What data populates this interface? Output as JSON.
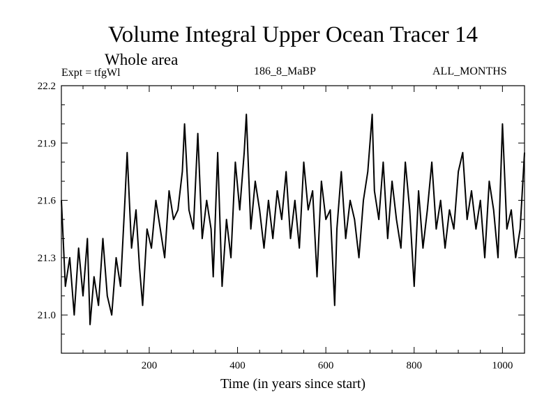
{
  "chart_data": {
    "type": "line",
    "title": "Volume Integral Upper Ocean Tracer 14",
    "subtitle": "Whole area",
    "experiment": "Expt = tfgWl",
    "run_label": "186_8_MaBP",
    "months": "ALL_MONTHS",
    "xlabel": "Time (in years since start)",
    "ylabel": "",
    "xlim": [
      1,
      1050
    ],
    "ylim": [
      20.8,
      22.2
    ],
    "x_ticks": [
      200,
      400,
      600,
      800,
      1000
    ],
    "y_ticks": [
      21.0,
      21.3,
      21.6,
      21.9,
      22.2
    ],
    "x_tick_labels": [
      "200",
      "400",
      "600",
      "800",
      "1000"
    ],
    "y_tick_labels": [
      "21.0",
      "21.3",
      "21.6",
      "21.9",
      "22.2"
    ],
    "series": [
      {
        "name": "tracer14",
        "x": [
          1,
          10,
          20,
          30,
          40,
          50,
          60,
          66,
          75,
          85,
          95,
          105,
          115,
          125,
          135,
          145,
          150,
          160,
          170,
          178,
          185,
          195,
          205,
          215,
          225,
          235,
          245,
          255,
          265,
          275,
          280,
          290,
          300,
          310,
          320,
          330,
          340,
          345,
          355,
          365,
          375,
          385,
          395,
          405,
          415,
          420,
          430,
          440,
          450,
          460,
          470,
          480,
          490,
          500,
          510,
          520,
          530,
          540,
          550,
          560,
          570,
          580,
          590,
          600,
          610,
          620,
          625,
          635,
          645,
          655,
          665,
          675,
          685,
          695,
          705,
          710,
          720,
          730,
          740,
          750,
          760,
          770,
          780,
          790,
          800,
          810,
          820,
          830,
          840,
          850,
          860,
          870,
          880,
          890,
          900,
          910,
          920,
          930,
          940,
          950,
          960,
          970,
          980,
          990,
          1000,
          1010,
          1020,
          1030,
          1040,
          1050
        ],
        "values": [
          21.6,
          21.15,
          21.3,
          21.0,
          21.35,
          21.1,
          21.4,
          20.95,
          21.2,
          21.05,
          21.4,
          21.1,
          21.0,
          21.3,
          21.15,
          21.6,
          21.85,
          21.35,
          21.55,
          21.25,
          21.05,
          21.45,
          21.35,
          21.6,
          21.45,
          21.3,
          21.65,
          21.5,
          21.55,
          21.75,
          22.0,
          21.55,
          21.45,
          21.95,
          21.4,
          21.6,
          21.45,
          21.2,
          21.85,
          21.15,
          21.5,
          21.3,
          21.8,
          21.55,
          21.85,
          22.05,
          21.45,
          21.7,
          21.55,
          21.35,
          21.6,
          21.4,
          21.65,
          21.5,
          21.75,
          21.4,
          21.6,
          21.35,
          21.8,
          21.55,
          21.65,
          21.2,
          21.7,
          21.5,
          21.55,
          21.05,
          21.45,
          21.75,
          21.4,
          21.6,
          21.5,
          21.3,
          21.6,
          21.75,
          22.05,
          21.65,
          21.5,
          21.8,
          21.4,
          21.7,
          21.5,
          21.35,
          21.8,
          21.55,
          21.15,
          21.65,
          21.35,
          21.55,
          21.8,
          21.45,
          21.6,
          21.35,
          21.55,
          21.45,
          21.75,
          21.85,
          21.5,
          21.65,
          21.45,
          21.6,
          21.3,
          21.7,
          21.55,
          21.3,
          22.0,
          21.45,
          21.55,
          21.3,
          21.45,
          21.85
        ]
      }
    ]
  }
}
